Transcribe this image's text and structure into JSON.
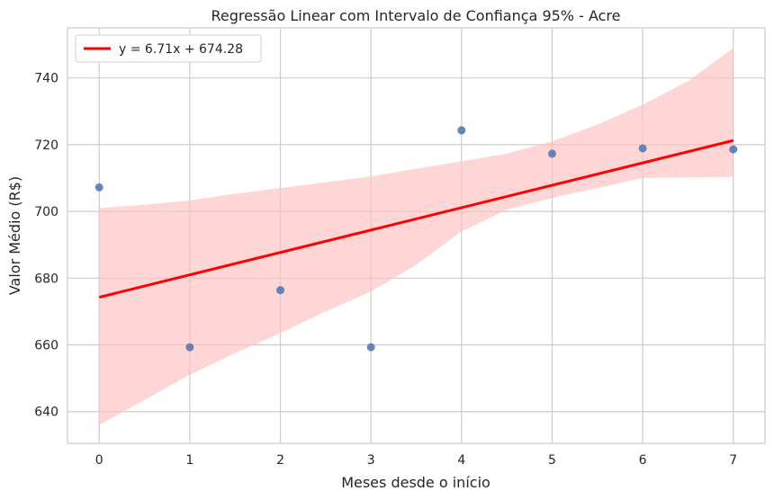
{
  "chart_data": {
    "type": "scatter",
    "title": "Regressão Linear com Intervalo de Confiança 95% - Acre",
    "xlabel": "Meses desde o início",
    "ylabel": "Valor Médio (R$)",
    "xlim": [
      -0.35,
      7.35
    ],
    "ylim": [
      630.5,
      755
    ],
    "xticks": [
      0,
      1,
      2,
      3,
      4,
      5,
      6,
      7
    ],
    "yticks": [
      640,
      660,
      680,
      700,
      720,
      740
    ],
    "grid": true,
    "legend_position": "top-left",
    "points": {
      "x": [
        0,
        1,
        2,
        3,
        4,
        5,
        6,
        7
      ],
      "y": [
        707.2,
        659.3,
        676.4,
        659.3,
        724.3,
        717.3,
        718.9,
        718.6
      ],
      "color": "#4c72b0"
    },
    "regression": {
      "label": "y = 6.71x + 674.28",
      "slope": 6.71,
      "intercept": 674.28,
      "color": "#ff0000"
    },
    "confidence_band": {
      "x": [
        0,
        0.5,
        1,
        1.5,
        2,
        2.5,
        3,
        3.5,
        4,
        4.5,
        5,
        5.5,
        6,
        6.5,
        7
      ],
      "lower": [
        636,
        643.5,
        651,
        657.5,
        663.5,
        670,
        676,
        684,
        694,
        700.5,
        704,
        707,
        710,
        710.2,
        710.3
      ],
      "upper": [
        701,
        702,
        703.3,
        705.3,
        707,
        708.7,
        710.5,
        712.8,
        715,
        717.3,
        721,
        726,
        732,
        739,
        749
      ],
      "color": "#ffc0c0"
    }
  }
}
